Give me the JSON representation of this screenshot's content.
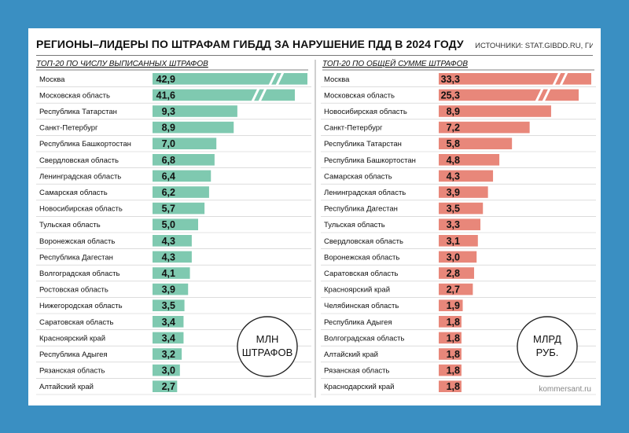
{
  "header": {
    "title": "РЕГИОНЫ–ЛИДЕРЫ ПО ШТРАФАМ ГИБДД ЗА НАРУШЕНИЕ ПДД В 2024 ГОДУ",
    "source": "ИСТОЧНИКИ: STAT.GIBDD.RU, ГИБДД."
  },
  "brand": "kommersant.ru",
  "colors": {
    "background": "#3a8fc2",
    "left_bar": "#7fc9b0",
    "right_bar": "#e8877a"
  },
  "chart_data": [
    {
      "type": "bar",
      "orientation": "horizontal",
      "title": "ТОП-20 ПО ЧИСЛУ ВЫПИСАННЫХ ШТРАФОВ",
      "unit_line1": "МЛН",
      "unit_line2": "ШТРАФОВ",
      "broken_bars": [
        "Москва",
        "Московская область"
      ],
      "categories": [
        "Москва",
        "Московская область",
        "Республика Татарстан",
        "Санкт-Петербург",
        "Республика Башкортостан",
        "Свердловская область",
        "Ленинградская область",
        "Самарская область",
        "Новосибирская область",
        "Тульская область",
        "Воронежская область",
        "Республика Дагестан",
        "Волгоградская область",
        "Ростовская область",
        "Нижегородская область",
        "Саратовская область",
        "Красноярский край",
        "Республика Адыгея",
        "Рязанская область",
        "Алтайский край"
      ],
      "value_labels": [
        "42,9",
        "41,6",
        "9,3",
        "8,9",
        "7,0",
        "6,8",
        "6,4",
        "6,2",
        "5,7",
        "5,0",
        "4,3",
        "4,3",
        "4,1",
        "3,9",
        "3,5",
        "3,4",
        "3,4",
        "3,2",
        "3,0",
        "2,7"
      ],
      "values": [
        42.9,
        41.6,
        9.3,
        8.9,
        7.0,
        6.8,
        6.4,
        6.2,
        5.7,
        5.0,
        4.3,
        4.3,
        4.1,
        3.9,
        3.5,
        3.4,
        3.4,
        3.2,
        3.0,
        2.7
      ]
    },
    {
      "type": "bar",
      "orientation": "horizontal",
      "title": "ТОП-20 ПО ОБЩЕЙ СУММЕ ШТРАФОВ",
      "unit_line1": "МЛРД",
      "unit_line2": "РУБ.",
      "broken_bars": [
        "Москва",
        "Московская область"
      ],
      "categories": [
        "Москва",
        "Московская область",
        "Новосибирская область",
        "Санкт-Петербург",
        "Республика Татарстан",
        "Республика Башкортостан",
        "Самарская область",
        "Ленинградская область",
        "Республика Дагестан",
        "Тульская область",
        "Свердловская область",
        "Воронежская область",
        "Саратовская область",
        "Красноярский край",
        "Челябинская область",
        "Республика Адыгея",
        "Волгоградская область",
        "Алтайский край",
        "Рязанская область",
        "Краснодарский край"
      ],
      "value_labels": [
        "33,3",
        "25,3",
        "8,9",
        "7,2",
        "5,8",
        "4,8",
        "4,3",
        "3,9",
        "3,5",
        "3,3",
        "3,1",
        "3,0",
        "2,8",
        "2,7",
        "1,9",
        "1,8",
        "1,8",
        "1,8",
        "1,8",
        "1,8"
      ],
      "values": [
        33.3,
        25.3,
        8.9,
        7.2,
        5.8,
        4.8,
        4.3,
        3.9,
        3.5,
        3.3,
        3.1,
        3.0,
        2.8,
        2.7,
        1.9,
        1.8,
        1.8,
        1.8,
        1.8,
        1.8
      ]
    }
  ]
}
